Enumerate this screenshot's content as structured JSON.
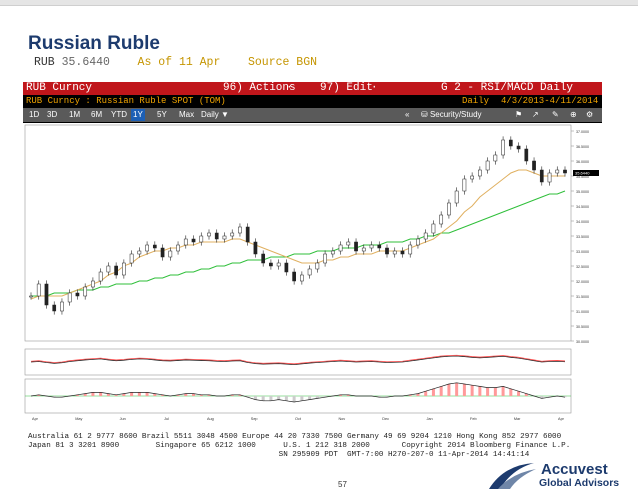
{
  "slide": {
    "title": "Russian Ruble",
    "quote_symbol": "RUB",
    "quote_value": "35.6440",
    "as_of": "As of 11 Apr",
    "source": "Source BGN",
    "page_number": "57",
    "logo_name": "Accuvest",
    "logo_sub": "Global Advisors"
  },
  "terminal": {
    "ticker": "RUB Curncy",
    "actions": "96) Actions",
    "edit": "97) Edit",
    "chart_name": "G 2 - RSI/MACD Daily",
    "security_desc": "RUB Curncy : Russian Ruble SPOT (TOM)",
    "period_label": "Daily",
    "date_range": "4/3/2013-4/11/2014",
    "buttons": [
      "1D",
      "3D",
      "1M",
      "6M",
      "YTD",
      "1Y",
      "5Y",
      "Max",
      "Daily ▼"
    ],
    "selected_button": "1Y",
    "security_study": "Security/Study",
    "footer_lines": [
      "Australia 61 2 9777 8600 Brazil 5511 3048 4500 Europe 44 20 7330 7500 Germany 49 69 9204 1210 Hong Kong 852 2977 6000",
      "Japan 81 3 3201 8900        Singapore 65 6212 1000      U.S. 1 212 318 2000       Copyright 2014 Bloomberg Finance L.P.",
      "                                                       SN 295909 PDT  GMT-7:00 H270-207-0 11-Apr-2014 14:41:14"
    ]
  },
  "colors": {
    "title": "#1d3b6e",
    "terminal_red": "#c0161b",
    "price_candles": "#e8e8e8",
    "ma_short": "#e0b060",
    "ma_long": "#2fbf3a",
    "signal": "#ff4d4d"
  },
  "chart_data": {
    "type": "line",
    "x_tick_labels": [
      "Apr",
      "May",
      "Jun",
      "Jul",
      "Aug\n2013",
      "Sep",
      "Oct",
      "Nov",
      "Dec",
      "Jan\n2014",
      "Feb",
      "Mar",
      "Apr"
    ],
    "y_tick_labels": [
      "37.0000",
      "36.5000",
      "36.0000",
      "35.5000",
      "35.0000",
      "34.5000",
      "34.0000",
      "33.5000",
      "33.0000",
      "32.5000",
      "32.0000",
      "31.5000",
      "31.0000",
      "30.5000",
      "30.0000"
    ],
    "ylim": [
      30.0,
      37.2
    ],
    "price": [
      31.5,
      31.9,
      31.2,
      31.0,
      31.3,
      31.6,
      31.5,
      31.8,
      32.0,
      32.3,
      32.5,
      32.2,
      32.6,
      32.9,
      33.0,
      33.2,
      33.1,
      32.8,
      33.0,
      33.2,
      33.4,
      33.3,
      33.5,
      33.6,
      33.4,
      33.5,
      33.6,
      33.8,
      33.3,
      32.9,
      32.6,
      32.5,
      32.6,
      32.3,
      32.0,
      32.2,
      32.4,
      32.6,
      32.9,
      33.0,
      33.2,
      33.3,
      33.0,
      33.1,
      33.2,
      33.1,
      32.9,
      33.0,
      32.9,
      33.2,
      33.4,
      33.6,
      33.9,
      34.2,
      34.6,
      35.0,
      35.4,
      35.5,
      35.7,
      36.0,
      36.2,
      36.7,
      36.5,
      36.4,
      36.0,
      35.7,
      35.3,
      35.6,
      35.7,
      35.6
    ],
    "ma_short": [
      31.4,
      31.5,
      31.5,
      31.5,
      31.5,
      31.6,
      31.7,
      31.8,
      31.9,
      32.0,
      32.2,
      32.3,
      32.5,
      32.6,
      32.8,
      32.9,
      33.0,
      33.0,
      33.1,
      33.1,
      33.2,
      33.2,
      33.3,
      33.3,
      33.3,
      33.3,
      33.4,
      33.4,
      33.3,
      33.2,
      33.1,
      33.0,
      32.9,
      32.8,
      32.7,
      32.6,
      32.6,
      32.6,
      32.7,
      32.7,
      32.8,
      32.8,
      32.9,
      32.9,
      32.9,
      33.0,
      33.0,
      33.0,
      33.0,
      33.1,
      33.2,
      33.3,
      33.4,
      33.6,
      33.8,
      34.0,
      34.3,
      34.5,
      34.8,
      35.0,
      35.2,
      35.4,
      35.6,
      35.7,
      35.7,
      35.6,
      35.5,
      35.5,
      35.5,
      35.5
    ],
    "ma_long": [
      31.5,
      31.5,
      31.5,
      31.6,
      31.6,
      31.6,
      31.7,
      31.7,
      31.7,
      31.8,
      31.8,
      31.9,
      31.9,
      31.9,
      32.0,
      32.0,
      32.1,
      32.1,
      32.2,
      32.2,
      32.3,
      32.3,
      32.4,
      32.4,
      32.5,
      32.5,
      32.6,
      32.6,
      32.7,
      32.7,
      32.7,
      32.8,
      32.8,
      32.8,
      32.9,
      32.9,
      32.9,
      33.0,
      33.0,
      33.0,
      33.1,
      33.1,
      33.1,
      33.2,
      33.2,
      33.2,
      33.3,
      33.3,
      33.3,
      33.4,
      33.4,
      33.5,
      33.5,
      33.6,
      33.6,
      33.7,
      33.8,
      33.9,
      34.0,
      34.1,
      34.2,
      34.3,
      34.4,
      34.5,
      34.6,
      34.7,
      34.8,
      34.9,
      34.9,
      35.0
    ],
    "rsi": [
      50,
      52,
      48,
      45,
      47,
      52,
      55,
      58,
      60,
      62,
      58,
      55,
      57,
      60,
      62,
      61,
      58,
      55,
      54,
      56,
      58,
      57,
      56,
      55,
      53,
      52,
      54,
      55,
      48,
      44,
      42,
      43,
      44,
      42,
      40,
      43,
      46,
      48,
      50,
      52,
      54,
      52,
      50,
      51,
      52,
      50,
      48,
      49,
      50,
      54,
      58,
      62,
      66,
      70,
      72,
      73,
      71,
      68,
      66,
      68,
      70,
      72,
      68,
      65,
      60,
      55,
      50,
      52,
      53,
      51
    ],
    "macd": [
      0.0,
      0.1,
      0.0,
      -0.1,
      -0.1,
      0.0,
      0.1,
      0.2,
      0.3,
      0.3,
      0.2,
      0.1,
      0.2,
      0.3,
      0.3,
      0.3,
      0.2,
      0.1,
      0.0,
      0.1,
      0.2,
      0.2,
      0.1,
      0.1,
      0.0,
      0.0,
      0.1,
      0.1,
      -0.1,
      -0.3,
      -0.4,
      -0.4,
      -0.3,
      -0.4,
      -0.5,
      -0.4,
      -0.3,
      -0.2,
      -0.1,
      0.0,
      0.1,
      0.1,
      0.0,
      0.0,
      0.0,
      -0.1,
      -0.1,
      0.0,
      0.0,
      0.1,
      0.2,
      0.4,
      0.6,
      0.8,
      1.0,
      1.1,
      1.0,
      0.9,
      0.8,
      0.7,
      0.7,
      0.8,
      0.6,
      0.4,
      0.2,
      0.0,
      -0.2,
      -0.1,
      0.0,
      -0.1
    ],
    "last_label": "35.6440"
  }
}
